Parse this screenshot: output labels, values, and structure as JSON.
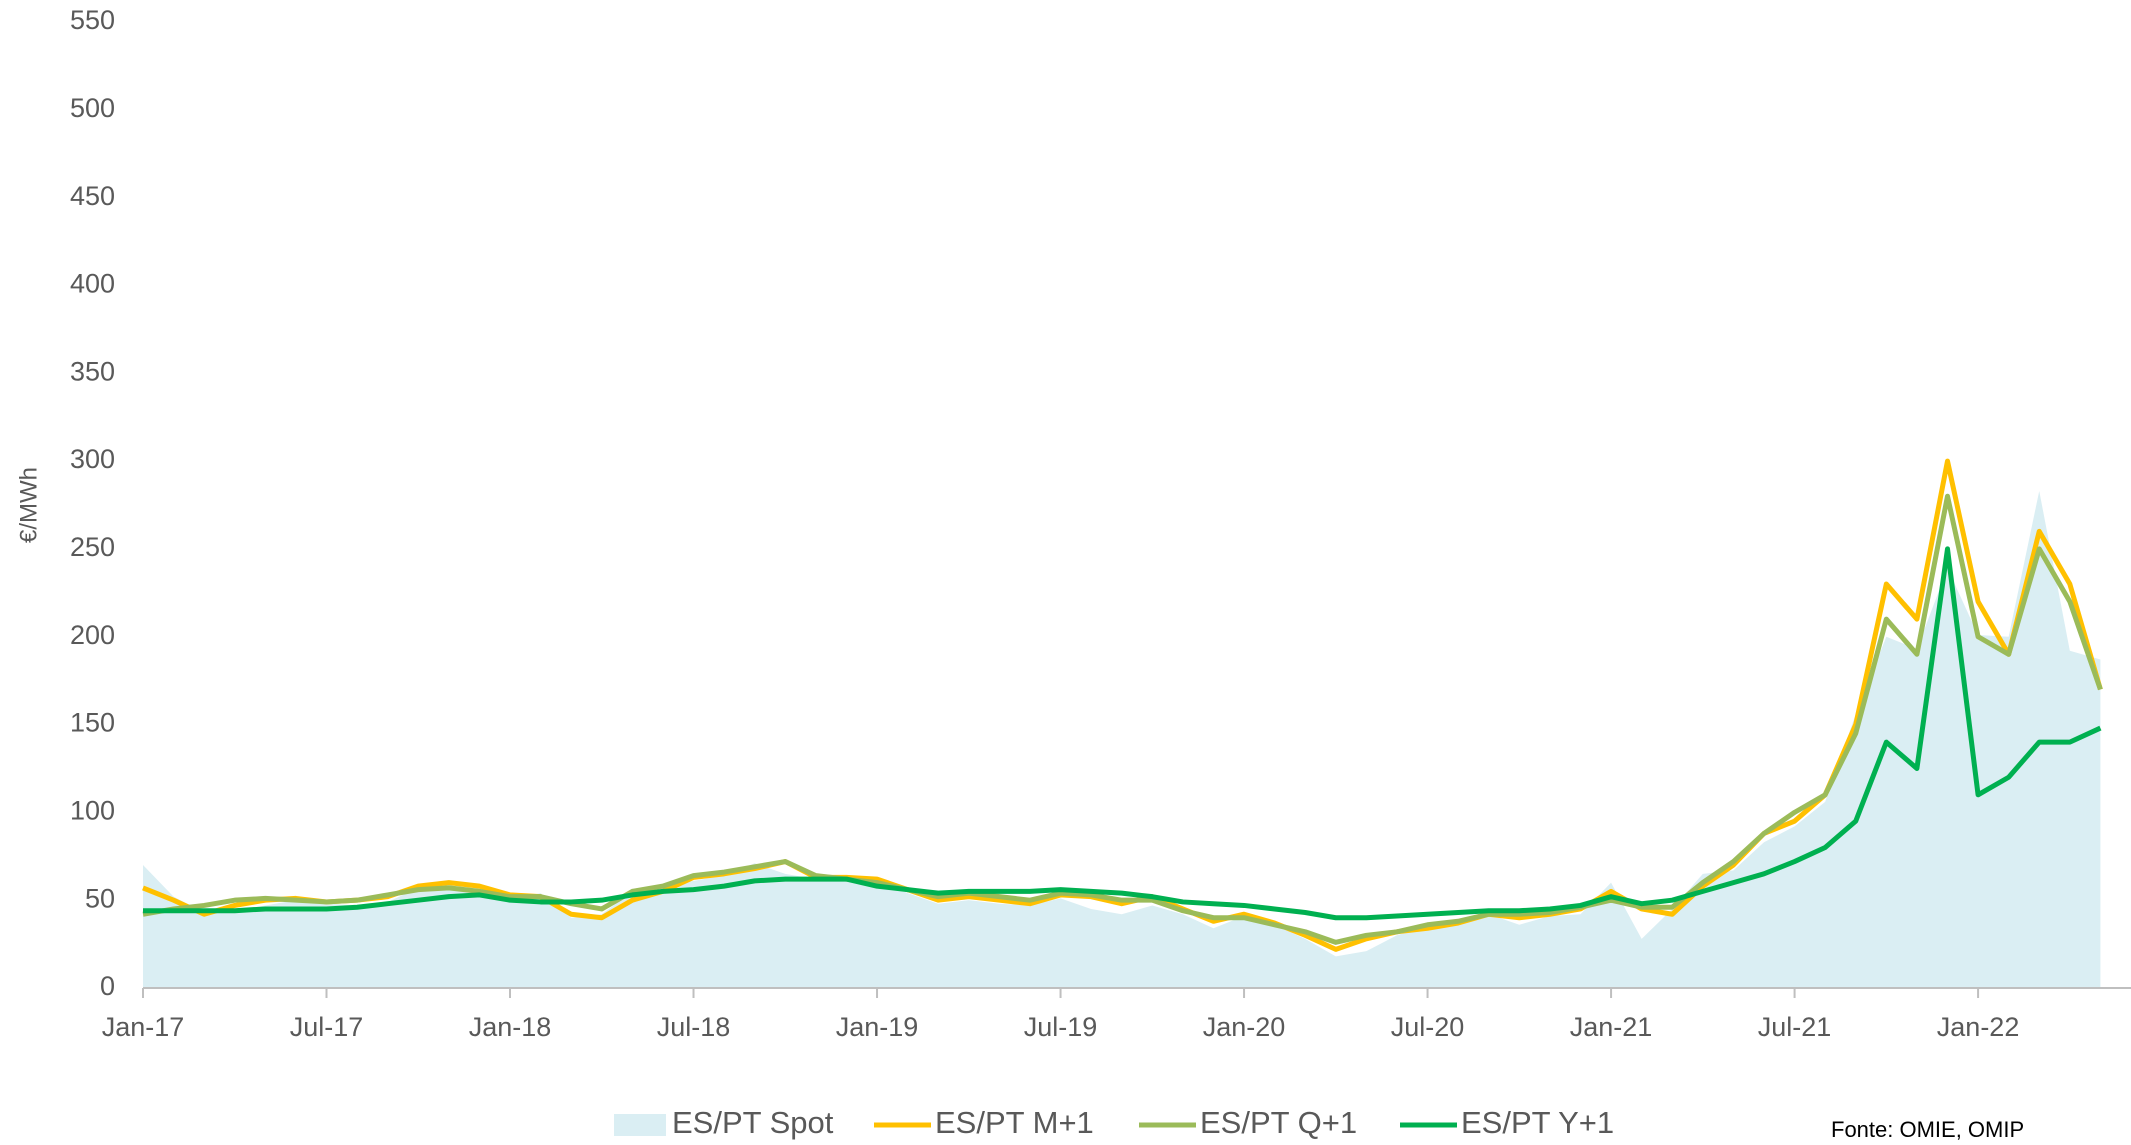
{
  "chart_data": {
    "type": "line",
    "ylabel": "€/MWh",
    "source": "Fonte: OMIE, OMIP",
    "x": [
      "2017-01",
      "2017-02",
      "2017-03",
      "2017-04",
      "2017-05",
      "2017-06",
      "2017-07",
      "2017-08",
      "2017-09",
      "2017-10",
      "2017-11",
      "2017-12",
      "2018-01",
      "2018-02",
      "2018-03",
      "2018-04",
      "2018-05",
      "2018-06",
      "2018-07",
      "2018-08",
      "2018-09",
      "2018-10",
      "2018-11",
      "2018-12",
      "2019-01",
      "2019-02",
      "2019-03",
      "2019-04",
      "2019-05",
      "2019-06",
      "2019-07",
      "2019-08",
      "2019-09",
      "2019-10",
      "2019-11",
      "2019-12",
      "2020-01",
      "2020-02",
      "2020-03",
      "2020-04",
      "2020-05",
      "2020-06",
      "2020-07",
      "2020-08",
      "2020-09",
      "2020-10",
      "2020-11",
      "2020-12",
      "2021-01",
      "2021-02",
      "2021-03",
      "2021-04",
      "2021-05",
      "2021-06",
      "2021-07",
      "2021-08",
      "2021-09",
      "2021-10",
      "2021-11",
      "2021-12",
      "2022-01",
      "2022-02",
      "2022-03",
      "2022-04",
      "2022-05"
    ],
    "series": [
      {
        "name": "ES/PT Spot",
        "kind": "area",
        "color": "#daeef3",
        "values": [
          70,
          52,
          43,
          44,
          47,
          50,
          48,
          47,
          49,
          57,
          59,
          57,
          50,
          54,
          40,
          42,
          55,
          58,
          61,
          64,
          71,
          65,
          62,
          61,
          62,
          54,
          48,
          50,
          48,
          47,
          51,
          45,
          42,
          47,
          42,
          34,
          41,
          36,
          28,
          18,
          21,
          30,
          35,
          36,
          42,
          36,
          41,
          42,
          60,
          28,
          45,
          65,
          67,
          83,
          92,
          106,
          156,
          200,
          193,
          239,
          201,
          200,
          283,
          192,
          187
        ]
      },
      {
        "name": "ES/PT M+1",
        "color": "#ffc000",
        "values": [
          57,
          50,
          42,
          47,
          50,
          51,
          49,
          50,
          52,
          58,
          60,
          58,
          53,
          52,
          42,
          40,
          50,
          55,
          63,
          65,
          68,
          72,
          63,
          63,
          62,
          56,
          50,
          52,
          50,
          48,
          53,
          52,
          48,
          52,
          45,
          38,
          42,
          37,
          30,
          22,
          28,
          32,
          34,
          37,
          42,
          40,
          42,
          45,
          55,
          45,
          42,
          58,
          70,
          88,
          95,
          110,
          150,
          230,
          210,
          300,
          220,
          190,
          260,
          230,
          170
        ]
      },
      {
        "name": "ES/PT Q+1",
        "color": "#9bbb59",
        "values": [
          42,
          45,
          47,
          50,
          51,
          50,
          49,
          50,
          53,
          56,
          57,
          55,
          52,
          52,
          48,
          45,
          55,
          58,
          64,
          66,
          69,
          72,
          64,
          62,
          60,
          56,
          52,
          54,
          52,
          50,
          54,
          53,
          50,
          50,
          44,
          40,
          40,
          36,
          32,
          26,
          30,
          32,
          36,
          38,
          42,
          42,
          43,
          46,
          50,
          46,
          46,
          60,
          72,
          88,
          100,
          110,
          145,
          210,
          190,
          280,
          200,
          190,
          250,
          220,
          170
        ]
      },
      {
        "name": "ES/PT Y+1",
        "color": "#00b050",
        "values": [
          44,
          44,
          44,
          44,
          45,
          45,
          45,
          46,
          48,
          50,
          52,
          53,
          50,
          49,
          49,
          50,
          53,
          55,
          56,
          58,
          61,
          62,
          62,
          62,
          58,
          56,
          54,
          55,
          55,
          55,
          56,
          55,
          54,
          52,
          49,
          48,
          47,
          45,
          43,
          40,
          40,
          41,
          42,
          43,
          44,
          44,
          45,
          47,
          52,
          48,
          50,
          55,
          60,
          65,
          72,
          80,
          95,
          140,
          125,
          250,
          110,
          120,
          140,
          140,
          148
        ]
      }
    ],
    "xlim": [
      "2017-01",
      "2022-06"
    ],
    "xticks": [
      {
        "value": "2017-01",
        "label": "Jan-17"
      },
      {
        "value": "2017-07",
        "label": "Jul-17"
      },
      {
        "value": "2018-01",
        "label": "Jan-18"
      },
      {
        "value": "2018-07",
        "label": "Jul-18"
      },
      {
        "value": "2019-01",
        "label": "Jan-19"
      },
      {
        "value": "2019-07",
        "label": "Jul-19"
      },
      {
        "value": "2020-01",
        "label": "Jan-20"
      },
      {
        "value": "2020-07",
        "label": "Jul-20"
      },
      {
        "value": "2021-01",
        "label": "Jan-21"
      },
      {
        "value": "2021-07",
        "label": "Jul-21"
      },
      {
        "value": "2022-01",
        "label": "Jan-22"
      }
    ],
    "ylim": [
      0,
      550
    ],
    "yticks": [
      0,
      50,
      100,
      150,
      200,
      250,
      300,
      350,
      400,
      450,
      500,
      550
    ],
    "grid": false,
    "legend": "bottom"
  }
}
